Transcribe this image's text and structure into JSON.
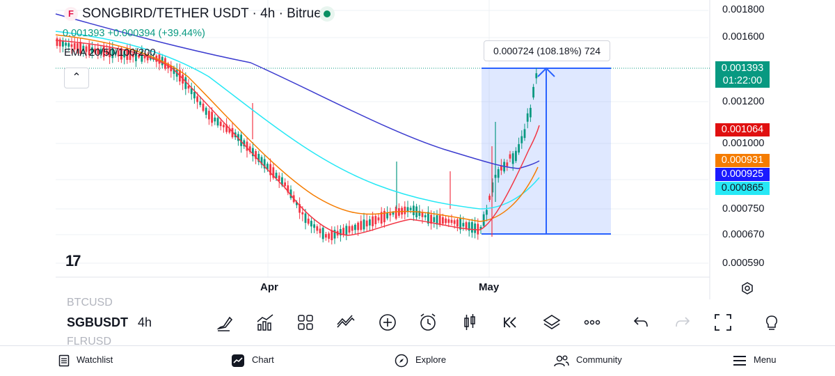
{
  "header": {
    "logo_glyph": "F",
    "title": "SONGBIRD/TETHER USDT · 4h · Bitrue",
    "quote": "0.001393  +0.000394 (+39.44%)",
    "indicator": "EMA 20/50/100/200",
    "collapse_glyph": "⌃"
  },
  "measure_tooltip": "0.000724 (108.18%) 724",
  "brand": "17",
  "price_axis": {
    "ticks": [
      "0.001800",
      "0.001600",
      "0.001200",
      "0.001000",
      "0.000750",
      "0.000670",
      "0.000590"
    ],
    "last_price": "0.001393",
    "countdown": "01:22:00",
    "ema_labels": [
      {
        "value": "0.001064",
        "color": "#f23645"
      },
      {
        "value": "0.000931",
        "color": "#f57c00"
      },
      {
        "value": "0.000925",
        "color": "#1a1aff"
      },
      {
        "value": "0.000865",
        "color": "#26e8f5"
      }
    ],
    "last_price_color": "#089981"
  },
  "time_axis": {
    "ticks": [
      "Apr",
      "May"
    ]
  },
  "colors": {
    "up": "#089981",
    "down": "#f23645",
    "ema20": "#f23645",
    "ema50": "#f57c00",
    "ema100": "#26e8f5",
    "ema200": "#3c3ccf"
  },
  "toolbar": {
    "symbols_above": "BTCUSD",
    "symbol": "SGBUSDT",
    "symbols_below": "FLRUSD",
    "interval": "4h",
    "tools": [
      "drawing-icon",
      "indicators-icon",
      "templates-icon",
      "compare-icon",
      "add-icon",
      "alert-icon",
      "chart-type-icon",
      "replay-icon",
      "layers-icon",
      "more-icon",
      "undo-icon",
      "redo-icon",
      "fullscreen-icon",
      "ideas-icon"
    ]
  },
  "nav": {
    "watchlist": "Watchlist",
    "chart": "Chart",
    "explore": "Explore",
    "community": "Community",
    "menu": "Menu"
  }
}
